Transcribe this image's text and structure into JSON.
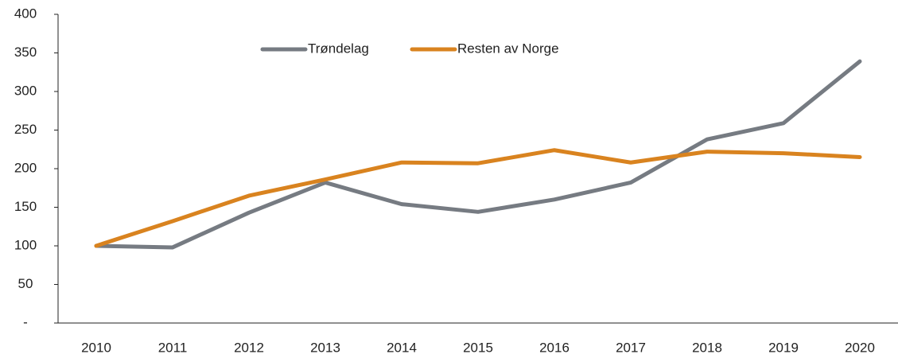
{
  "chart_data": {
    "type": "line",
    "categories": [
      "2010",
      "2011",
      "2012",
      "2013",
      "2014",
      "2015",
      "2016",
      "2017",
      "2018",
      "2019",
      "2020"
    ],
    "series": [
      {
        "name": "Trøndelag",
        "color": "#767b82",
        "values": [
          100,
          98,
          143,
          182,
          154,
          144,
          160,
          182,
          238,
          259,
          339
        ]
      },
      {
        "name": "Resten av Norge",
        "color": "#d9831f",
        "values": [
          100,
          132,
          165,
          186,
          208,
          207,
          224,
          208,
          222,
          220,
          215
        ]
      }
    ],
    "ylim": [
      0,
      400
    ],
    "yticks": [
      {
        "value": 0,
        "label": "-"
      },
      50,
      100,
      150,
      200,
      250,
      300,
      350,
      400
    ],
    "grid": false,
    "legend": "top"
  }
}
